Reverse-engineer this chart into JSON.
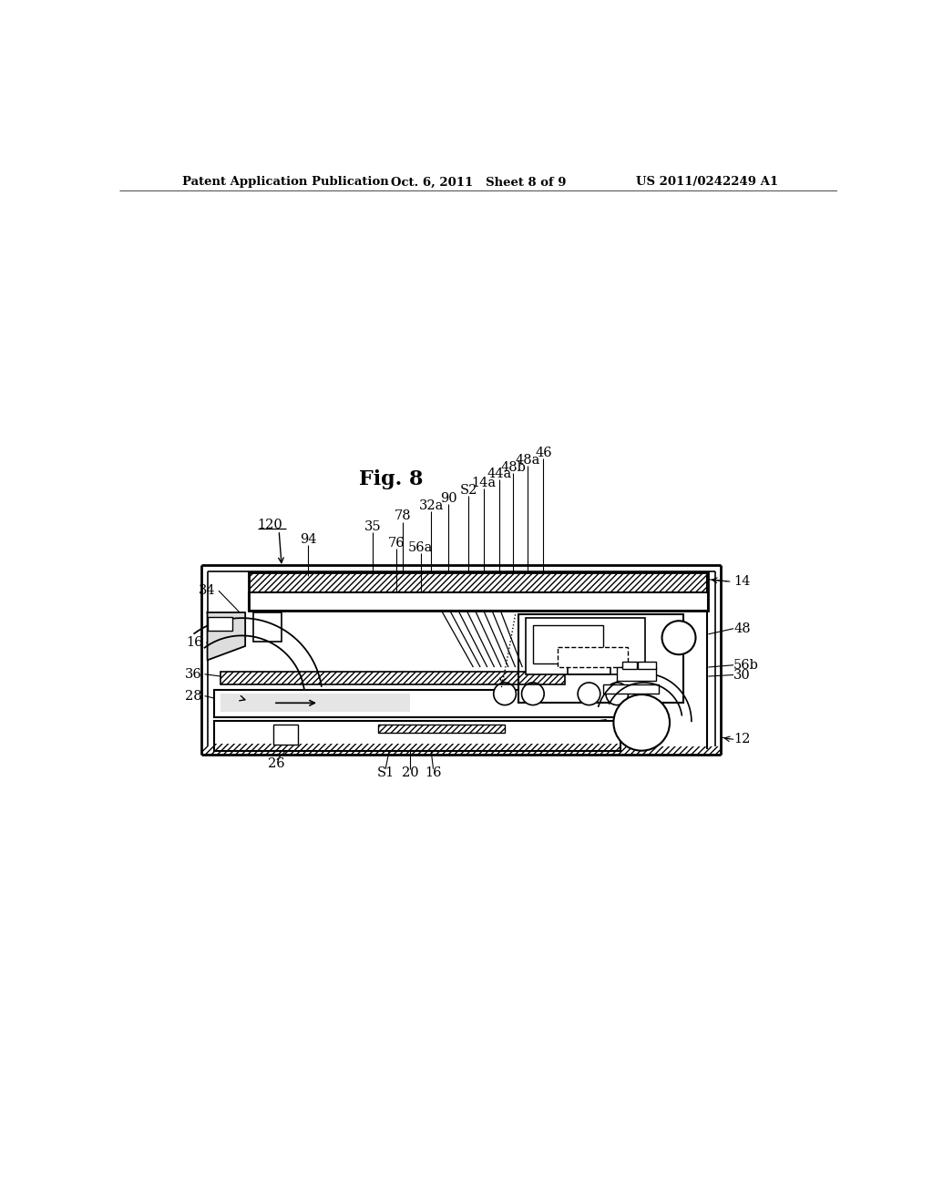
{
  "bg_color": "#ffffff",
  "header_left": "Patent Application Publication",
  "header_center": "Oct. 6, 2011   Sheet 8 of 9",
  "header_right": "US 2011/0242249 A1",
  "fig_title": "Fig. 8"
}
